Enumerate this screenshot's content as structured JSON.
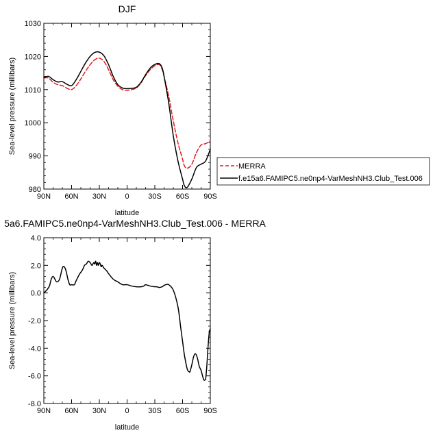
{
  "chart_data": [
    {
      "type": "line",
      "title": "DJF",
      "xlabel": "latitude",
      "ylabel": "Sea-level pressure (millibars)",
      "xlim": [
        90,
        -90
      ],
      "ylim": [
        980,
        1030
      ],
      "x_ticks": [
        90,
        60,
        30,
        0,
        -30,
        -60,
        -90
      ],
      "x_tick_labels": [
        "90N",
        "60N",
        "30N",
        "0",
        "30S",
        "60S",
        "90S"
      ],
      "y_ticks": [
        980,
        990,
        1000,
        1010,
        1020,
        1030
      ],
      "y_tick_labels": [
        "980",
        "990",
        "1000",
        "1010",
        "1020",
        "1030"
      ],
      "grid": false,
      "legend": "right",
      "series": [
        {
          "name": "MERRA",
          "color": "#e41a1c",
          "dash": "dashed",
          "x": [
            90,
            85,
            80,
            75,
            70,
            65,
            60,
            55,
            50,
            45,
            40,
            35,
            30,
            25,
            20,
            15,
            10,
            5,
            0,
            -5,
            -10,
            -15,
            -20,
            -25,
            -30,
            -35,
            -38,
            -40,
            -45,
            -50,
            -55,
            -60,
            -62,
            -65,
            -70,
            -75,
            -80,
            -85,
            -90
          ],
          "values": [
            1013.5,
            1013.5,
            1012.2,
            1011.5,
            1011.2,
            1010.4,
            1010.0,
            1011.2,
            1013.2,
            1015.5,
            1017.5,
            1019.0,
            1019.5,
            1018.5,
            1016.0,
            1013.0,
            1011.0,
            1010.0,
            1009.8,
            1010.0,
            1010.5,
            1012.0,
            1014.2,
            1016.0,
            1017.2,
            1017.5,
            1016.0,
            1014.0,
            1008.0,
            1000.5,
            994.0,
            989.0,
            987.0,
            986.3,
            987.5,
            991.0,
            993.3,
            993.7,
            994.5
          ]
        },
        {
          "name": "f.e15a6.FAMIPC5.ne0np4-VarMeshNH3.Club_Test.006",
          "color": "#000000",
          "dash": "solid",
          "x": [
            90,
            85,
            80,
            75,
            70,
            65,
            60,
            55,
            50,
            45,
            40,
            35,
            30,
            25,
            20,
            15,
            10,
            5,
            0,
            -5,
            -10,
            -15,
            -20,
            -25,
            -30,
            -35,
            -38,
            -40,
            -45,
            -50,
            -55,
            -60,
            -62,
            -65,
            -70,
            -75,
            -80,
            -85,
            -90
          ],
          "values": [
            1013.6,
            1014.0,
            1013.0,
            1012.3,
            1012.4,
            1011.6,
            1011.2,
            1013.0,
            1015.5,
            1018.0,
            1020.0,
            1021.2,
            1021.3,
            1020.2,
            1017.5,
            1014.0,
            1011.5,
            1010.5,
            1010.3,
            1010.4,
            1010.7,
            1012.2,
            1014.5,
            1016.5,
            1017.6,
            1017.8,
            1016.5,
            1014.0,
            1006.0,
            996.0,
            988.5,
            983.0,
            981.0,
            980.5,
            983.0,
            986.5,
            987.5,
            988.5,
            992.0
          ]
        }
      ]
    },
    {
      "type": "line",
      "title": "5a6.FAMIPC5.ne0np4-VarMeshNH3.Club_Test.006 - MERRA",
      "xlabel": "latitude",
      "ylabel": "Sea-level pressure (millibars)",
      "xlim": [
        90,
        -90
      ],
      "ylim": [
        -8,
        4
      ],
      "x_ticks": [
        90,
        60,
        30,
        0,
        -30,
        -60,
        -90
      ],
      "x_tick_labels": [
        "90N",
        "60N",
        "30N",
        "0",
        "30S",
        "60S",
        "90S"
      ],
      "y_ticks": [
        -8,
        -6,
        -4,
        -2,
        0,
        2,
        4
      ],
      "y_tick_labels": [
        "-8.0",
        "-6.0",
        "-4.0",
        "-2.0",
        "0.0",
        "2.0",
        "4.0"
      ],
      "grid": false,
      "series": [
        {
          "color": "#000000",
          "dash": "solid",
          "x": [
            90,
            87,
            84,
            82,
            80,
            78,
            76,
            73,
            70,
            68,
            66,
            64,
            62,
            60,
            57,
            55,
            52,
            50,
            48,
            46,
            44,
            42,
            40,
            38,
            37,
            36,
            35,
            34,
            33,
            32,
            31,
            30,
            29,
            28,
            27,
            25,
            22,
            20,
            15,
            10,
            5,
            0,
            -5,
            -10,
            -15,
            -18,
            -20,
            -25,
            -30,
            -32,
            -35,
            -38,
            -40,
            -42,
            -45,
            -50,
            -55,
            -58,
            -60,
            -62,
            -64,
            -65,
            -66,
            -67,
            -68,
            -70,
            -72,
            -74,
            -76,
            -78,
            -80,
            -82,
            -83,
            -84,
            -85,
            -86,
            -87,
            -88,
            -89,
            -90
          ],
          "values": [
            0.0,
            0.2,
            0.5,
            1.0,
            1.2,
            1.0,
            0.8,
            1.0,
            1.8,
            1.9,
            1.6,
            1.0,
            0.6,
            0.6,
            0.6,
            0.9,
            1.3,
            1.5,
            1.7,
            2.0,
            2.1,
            2.3,
            2.2,
            2.0,
            2.1,
            2.2,
            2.1,
            2.3,
            2.0,
            2.2,
            2.0,
            2.2,
            2.1,
            1.9,
            2.0,
            1.8,
            1.6,
            1.4,
            1.0,
            0.8,
            0.6,
            0.6,
            0.5,
            0.45,
            0.45,
            0.5,
            0.6,
            0.5,
            0.45,
            0.45,
            0.4,
            0.45,
            0.55,
            0.6,
            0.6,
            0.2,
            -1.0,
            -2.5,
            -3.5,
            -4.5,
            -5.2,
            -5.5,
            -5.65,
            -5.7,
            -5.7,
            -5.2,
            -4.6,
            -4.4,
            -4.7,
            -5.3,
            -5.6,
            -6.1,
            -6.3,
            -6.3,
            -6.2,
            -5.5,
            -4.5,
            -3.5,
            -2.8,
            -2.6
          ]
        }
      ]
    }
  ]
}
